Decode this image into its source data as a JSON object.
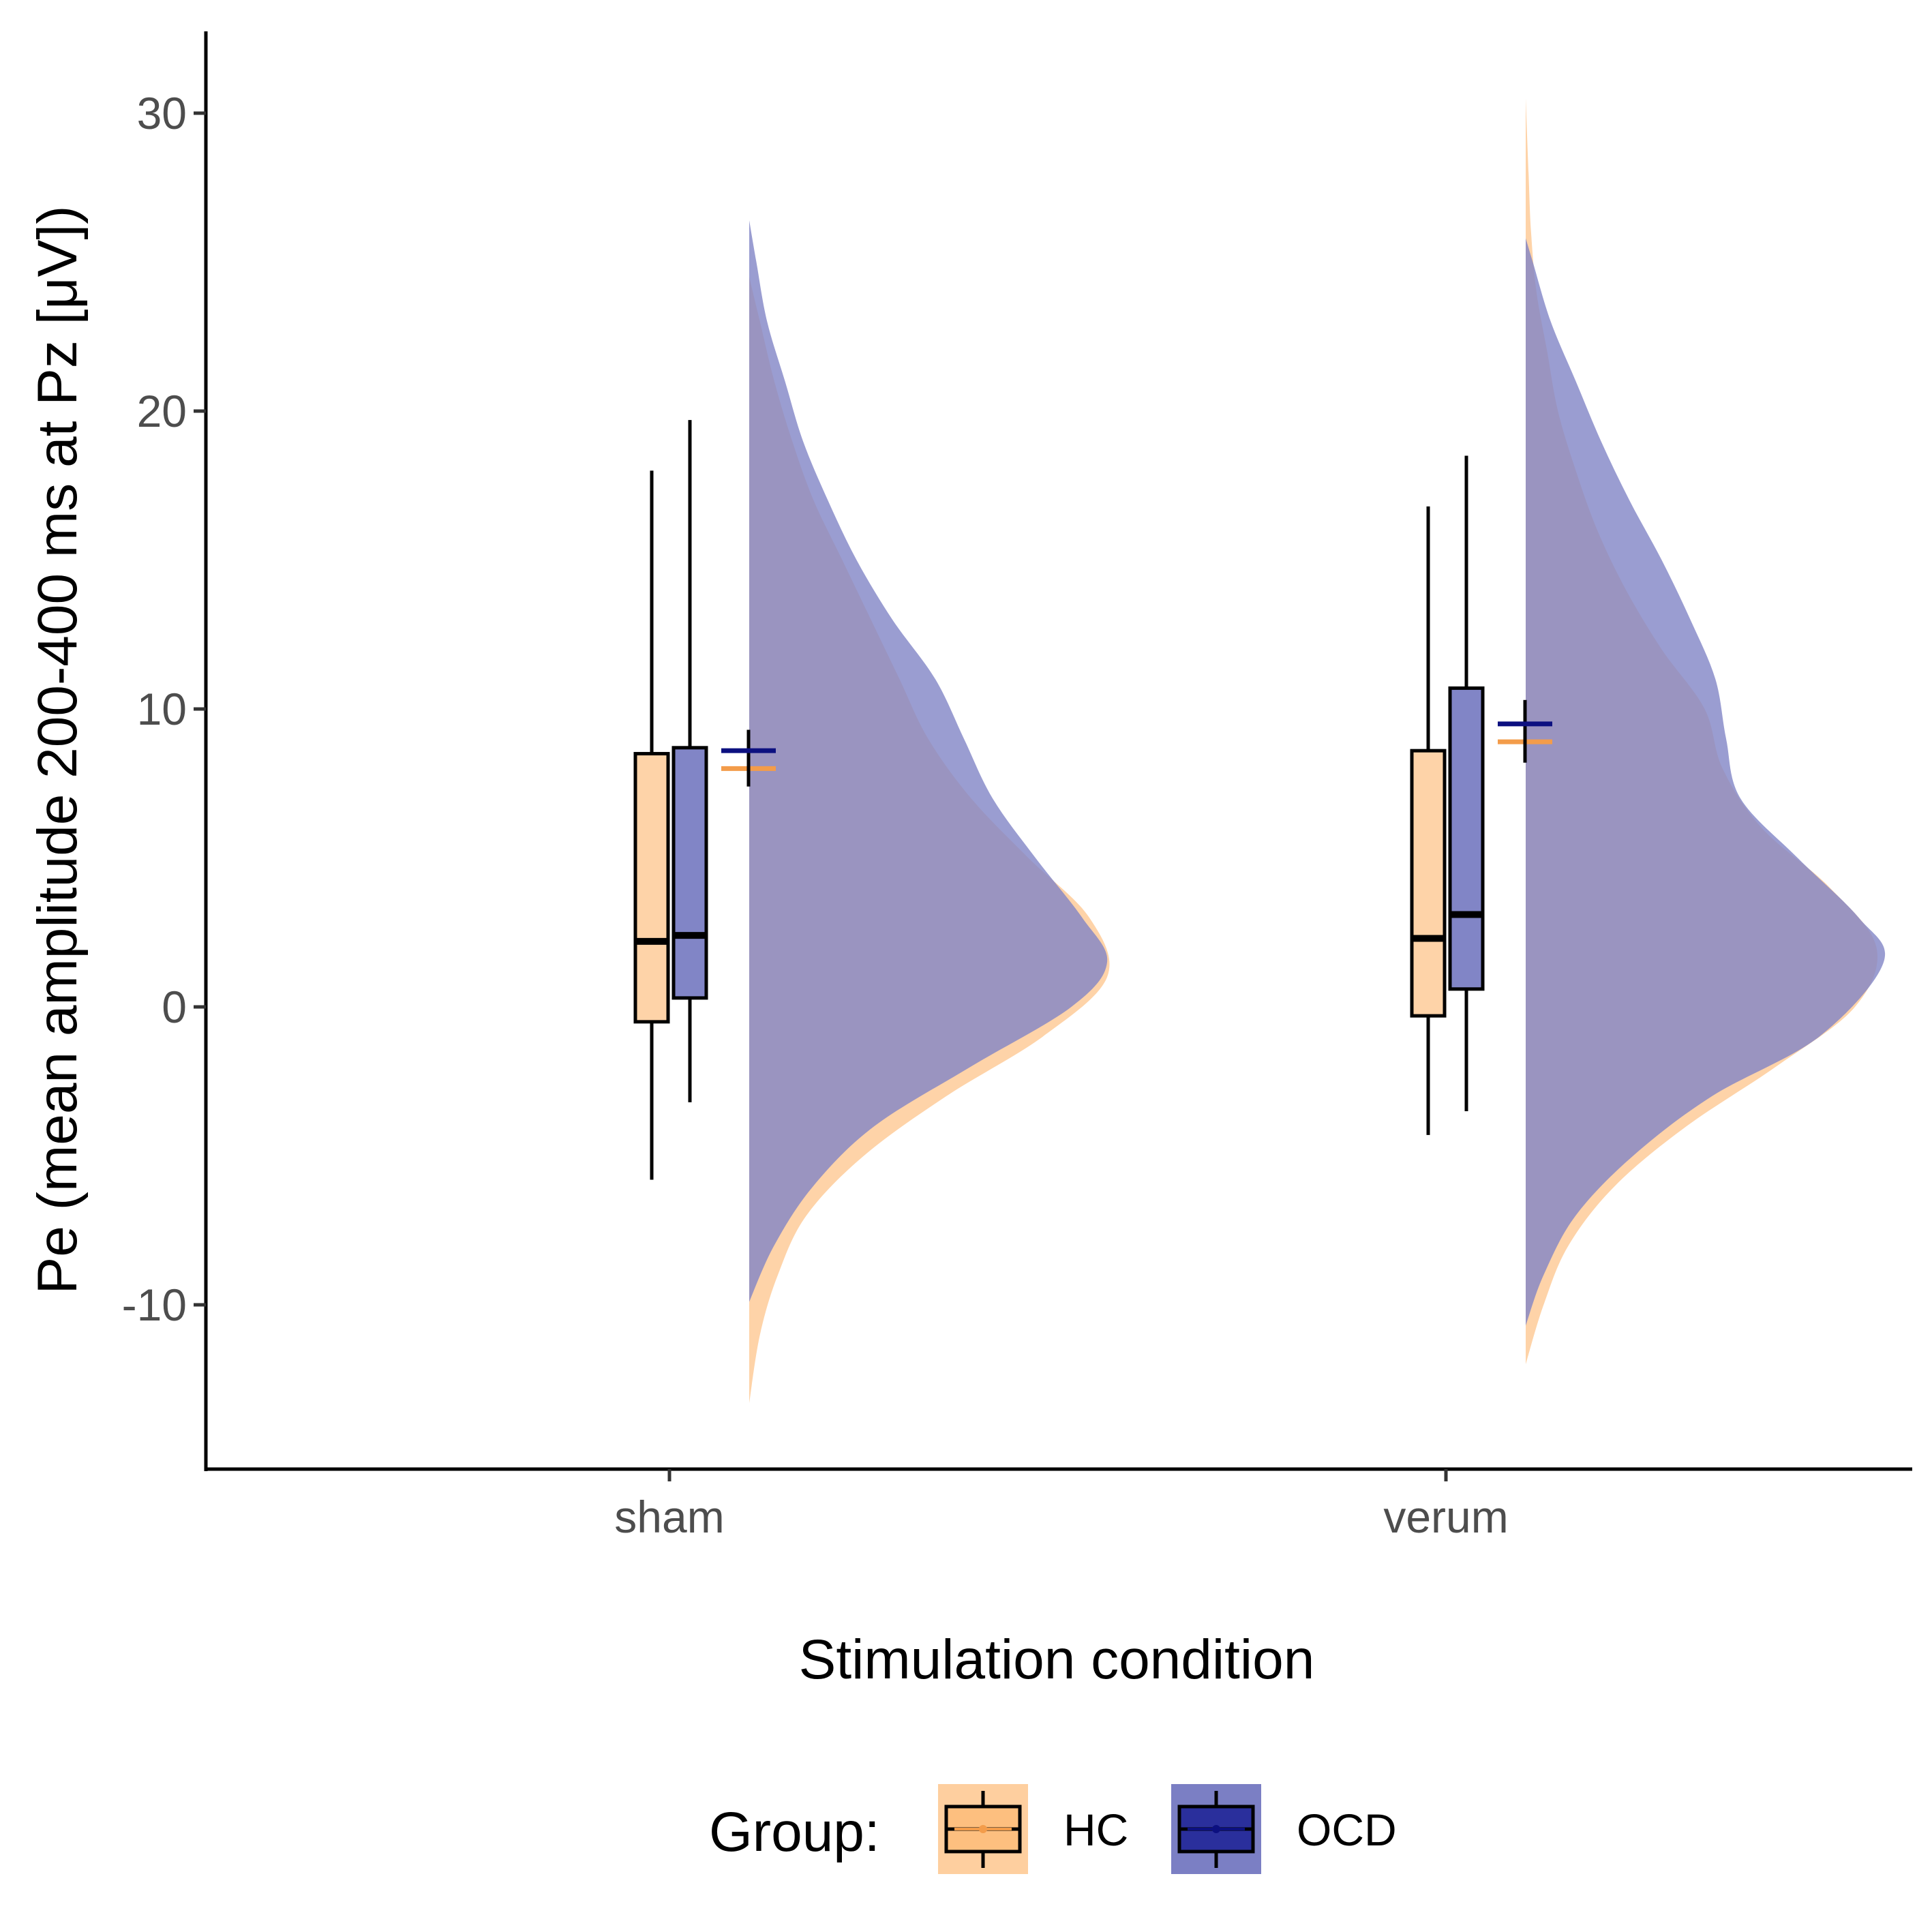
{
  "chart_data": {
    "type": "raincloud",
    "xlabel": "Stimulation condition",
    "ylabel": "Pe (mean amplitude 200-400 ms at Pz [μV])",
    "ylim": [
      -15,
      32.7
    ],
    "yticks": [
      -10,
      0,
      10,
      20,
      30
    ],
    "ytick_labels": [
      "-10",
      "0",
      "10",
      "20",
      "30"
    ],
    "categories": [
      "sham",
      "verum"
    ],
    "grid": false,
    "legend": {
      "title": "Group:",
      "position": "bottom",
      "items": [
        {
          "name": "HC",
          "fill": "#fdbf7f",
          "line": "#f39c4a"
        },
        {
          "name": "OCD",
          "fill": "#7b7fc4",
          "line": "#0c1080"
        }
      ]
    },
    "colors": {
      "HC_fill": "#fed3a8",
      "OCD_fill": "#8185c6",
      "overlap": "#806a8f",
      "HC_mean": "#f39c4a",
      "OCD_mean": "#0c1080"
    },
    "series": [
      {
        "name": "HC",
        "boxplots": [
          {
            "category": "sham",
            "whisker_low": -5.8,
            "q1": -0.5,
            "median": 2.2,
            "q3": 8.5,
            "whisker_high": 18.0
          },
          {
            "category": "verum",
            "whisker_low": -4.3,
            "q1": -0.3,
            "median": 2.3,
            "q3": 8.6,
            "whisker_high": 16.8
          }
        ],
        "means": [
          {
            "category": "sham",
            "mean": 8.0,
            "ci_low": 7.4,
            "ci_high": 9.3
          },
          {
            "category": "verum",
            "mean": 8.9,
            "ci_low": 8.2,
            "ci_high": 10.3
          }
        ],
        "densities": [
          {
            "category": "sham",
            "range": [
              -13.3,
              24.5
            ],
            "y": [
              -13.3,
              -11,
              -9,
              -7,
              -5,
              -3,
              -1,
              1,
              3,
              5,
              7,
              9,
              11,
              13,
              15,
              17,
              19,
              21,
              23,
              24.5
            ],
            "density": [
              0.0,
              0.03,
              0.08,
              0.16,
              0.32,
              0.55,
              0.82,
              1.0,
              0.95,
              0.78,
              0.62,
              0.5,
              0.42,
              0.34,
              0.26,
              0.18,
              0.12,
              0.07,
              0.03,
              0.0
            ]
          },
          {
            "category": "verum",
            "range": [
              -12.0,
              30.5
            ],
            "y": [
              -12.0,
              -10,
              -8,
              -6,
              -4,
              -2,
              0,
              2,
              4,
              6,
              8,
              10,
              12,
              14,
              16,
              18,
              20,
              22,
              24,
              26,
              28,
              30.5
            ],
            "density": [
              0.0,
              0.05,
              0.12,
              0.25,
              0.45,
              0.7,
              0.92,
              0.98,
              0.85,
              0.66,
              0.55,
              0.5,
              0.38,
              0.28,
              0.2,
              0.14,
              0.09,
              0.06,
              0.03,
              0.015,
              0.008,
              0.0
            ]
          }
        ]
      },
      {
        "name": "OCD",
        "boxplots": [
          {
            "category": "sham",
            "whisker_low": -3.2,
            "q1": 0.3,
            "median": 2.4,
            "q3": 8.7,
            "whisker_high": 19.7
          },
          {
            "category": "verum",
            "whisker_low": -3.5,
            "q1": 0.6,
            "median": 3.1,
            "q3": 10.7,
            "whisker_high": 18.5
          }
        ],
        "means": [
          {
            "category": "sham",
            "mean": 8.6,
            "ci_low": 7.4,
            "ci_high": 9.3
          },
          {
            "category": "verum",
            "mean": 9.5,
            "ci_low": 8.2,
            "ci_high": 10.3
          }
        ],
        "densities": [
          {
            "category": "sham",
            "range": [
              -9.9,
              26.4
            ],
            "y": [
              -9.9,
              -8,
              -6,
              -4,
              -2,
              0,
              1.5,
              3,
              5,
              7,
              9,
              11,
              13,
              15,
              17,
              19,
              21,
              23,
              25,
              26.4
            ],
            "density": [
              0.0,
              0.07,
              0.18,
              0.35,
              0.62,
              0.9,
              1.0,
              0.93,
              0.8,
              0.68,
              0.6,
              0.52,
              0.4,
              0.3,
              0.22,
              0.15,
              0.1,
              0.05,
              0.02,
              0.0
            ]
          },
          {
            "category": "verum",
            "range": [
              -10.7,
              25.8
            ],
            "y": [
              -10.7,
              -9,
              -7,
              -5,
              -3,
              -1,
              1.5,
              3,
              5,
              7,
              9,
              11,
              13,
              15,
              17,
              19,
              21,
              23,
              25,
              25.8
            ],
            "density": [
              0.0,
              0.05,
              0.14,
              0.3,
              0.52,
              0.82,
              1.0,
              0.93,
              0.76,
              0.6,
              0.56,
              0.53,
              0.46,
              0.38,
              0.29,
              0.21,
              0.14,
              0.07,
              0.02,
              0.0
            ]
          }
        ]
      }
    ]
  }
}
